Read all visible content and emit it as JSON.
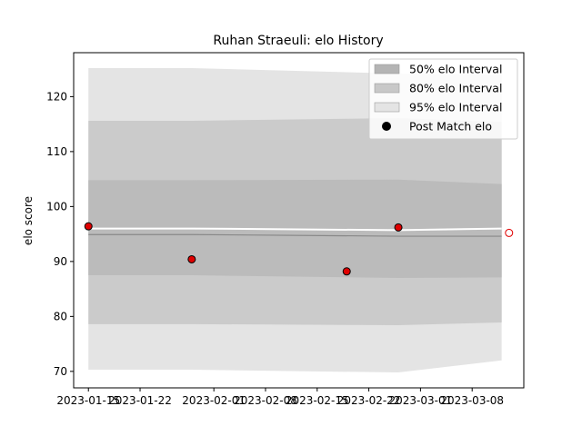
{
  "chart_data": {
    "type": "line",
    "title": "Ruhan Straeuli: elo History",
    "xlabel": "",
    "ylabel": "elo score",
    "x_type": "date",
    "xlim": [
      "2023-01-13",
      "2023-03-15"
    ],
    "ylim": [
      67,
      128
    ],
    "yticks": [
      70,
      80,
      90,
      100,
      110,
      120
    ],
    "xticks": [
      "2023-01-15",
      "2023-01-22",
      "2023-02-01",
      "2023-02-08",
      "2023-02-15",
      "2023-02-22",
      "2023-03-01",
      "2023-03-08"
    ],
    "grid": false,
    "legend_position": "top-right",
    "legend": [
      {
        "label": "50% elo Interval",
        "color": "#b4b4b4",
        "kind": "patch"
      },
      {
        "label": "80% elo Interval",
        "color": "#c8c8c8",
        "kind": "patch"
      },
      {
        "label": "95% elo Interval",
        "color": "#e4e4e4",
        "kind": "patch"
      },
      {
        "label": "Post Match elo",
        "color": "#000000",
        "kind": "marker"
      }
    ],
    "bands": [
      {
        "name": "95% elo Interval",
        "color": "#e4e4e4",
        "x": [
          "2023-01-15",
          "2023-01-29",
          "2023-02-26",
          "2023-03-12"
        ],
        "upper": [
          125.2,
          125.2,
          124.2,
          124.0
        ],
        "lower": [
          70.3,
          70.3,
          69.8,
          72.0
        ]
      },
      {
        "name": "80% elo Interval",
        "color": "#cbcbcb",
        "x": [
          "2023-01-15",
          "2023-01-29",
          "2023-02-26",
          "2023-03-12"
        ],
        "upper": [
          115.6,
          115.6,
          116.1,
          115.4
        ],
        "lower": [
          78.6,
          78.6,
          78.4,
          78.9
        ]
      },
      {
        "name": "50% elo Interval",
        "color": "#bbbbbb",
        "x": [
          "2023-01-15",
          "2023-01-29",
          "2023-02-26",
          "2023-03-12"
        ],
        "upper": [
          104.8,
          104.8,
          104.9,
          104.1
        ],
        "lower": [
          87.5,
          87.5,
          87.0,
          87.1
        ]
      }
    ],
    "mean_line": {
      "x": [
        "2023-01-15",
        "2023-01-29",
        "2023-02-26",
        "2023-03-12"
      ],
      "y": [
        94.9,
        94.9,
        94.6,
        94.6
      ],
      "color": "#888888"
    },
    "trend_line": {
      "x": [
        "2023-01-15",
        "2023-01-29",
        "2023-02-26",
        "2023-03-12"
      ],
      "y": [
        96.0,
        96.0,
        95.7,
        96.0
      ],
      "color": "#ffffff"
    },
    "points": [
      {
        "x": "2023-01-15",
        "y": 96.4
      },
      {
        "x": "2023-01-29",
        "y": 90.4
      },
      {
        "x": "2023-02-19",
        "y": 88.2
      },
      {
        "x": "2023-02-26",
        "y": 96.2
      }
    ],
    "point_style": {
      "fill": "#e00000",
      "stroke": "#000000"
    },
    "projected_point": {
      "x": "2023-03-13",
      "y": 95.2,
      "fill": "#ffffff",
      "stroke": "#e00000"
    }
  }
}
